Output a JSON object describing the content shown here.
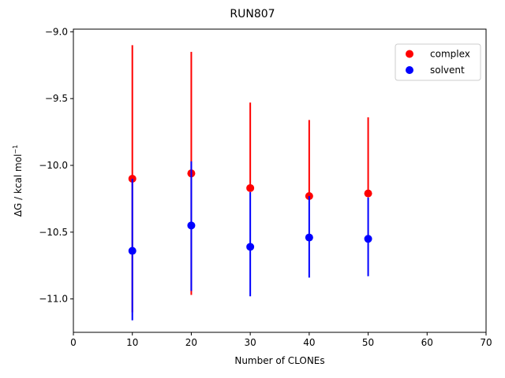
{
  "chart_data": {
    "type": "scatter",
    "title": "RUN807",
    "xlabel": "Number of CLONEs",
    "ylabel_main": "ΔG / kcal mol",
    "ylabel_sup": "−1",
    "xlim": [
      0,
      70
    ],
    "ylim": [
      -11.25,
      -8.98
    ],
    "x_ticks": [
      0,
      10,
      20,
      30,
      40,
      50,
      60,
      70
    ],
    "x_tick_labels": [
      "0",
      "10",
      "20",
      "30",
      "40",
      "50",
      "60",
      "70"
    ],
    "y_ticks": [
      -11.0,
      -10.5,
      -10.0,
      -9.5,
      -9.0
    ],
    "y_tick_labels": [
      "−11.0",
      "−10.5",
      "−10.0",
      "−9.5",
      "−9.0"
    ],
    "grid": false,
    "legend_position": "top-right",
    "series": [
      {
        "name": "complex",
        "color": "#ff0000",
        "x": [
          10,
          20,
          30,
          40,
          50
        ],
        "y": [
          -10.1,
          -10.06,
          -10.17,
          -10.23,
          -10.21
        ],
        "err_low": [
          -11.1,
          -10.97,
          -10.17,
          -10.23,
          -10.21
        ],
        "err_high": [
          -9.1,
          -9.15,
          -9.53,
          -9.66,
          -9.64
        ]
      },
      {
        "name": "solvent",
        "color": "#0000ff",
        "x": [
          10,
          20,
          30,
          40,
          50
        ],
        "y": [
          -10.64,
          -10.45,
          -10.61,
          -10.54,
          -10.55
        ],
        "err_low": [
          -11.16,
          -10.94,
          -10.98,
          -10.84,
          -10.83
        ],
        "err_high": [
          -10.1,
          -9.97,
          -10.2,
          -10.23,
          -10.24
        ]
      }
    ]
  }
}
